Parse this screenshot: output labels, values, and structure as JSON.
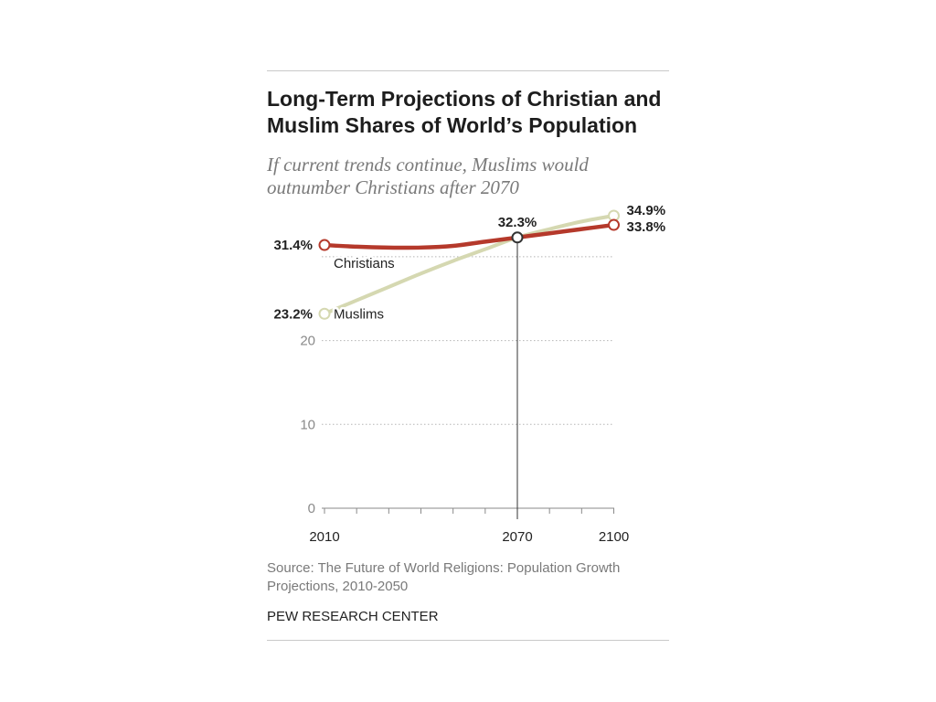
{
  "chart_data": {
    "type": "line",
    "title": "Long-Term Projections of Christian and Muslim Shares of World’s Population",
    "subtitle": "If current trends continue, Muslims would outnumber Christians after 2070",
    "xlabel": "",
    "ylabel": "",
    "x": [
      2010,
      2020,
      2030,
      2040,
      2050,
      2060,
      2070,
      2080,
      2090,
      2100
    ],
    "xticks": [
      2010,
      2070,
      2100
    ],
    "xtick_labels": [
      "2010",
      "2070",
      "2100"
    ],
    "yticks": [
      0,
      10,
      20
    ],
    "ytick_labels": [
      "0",
      "10",
      "20"
    ],
    "ylim": [
      0,
      35
    ],
    "grid": true,
    "gridlines": [
      10,
      20,
      30
    ],
    "series": [
      {
        "name": "Christians",
        "color": "#b5392b",
        "values": [
          31.4,
          31.2,
          31.1,
          31.1,
          31.3,
          31.8,
          32.3,
          32.8,
          33.3,
          33.8
        ],
        "label_position": "below-right"
      },
      {
        "name": "Muslims",
        "color": "#d5d8b1",
        "values": [
          23.2,
          24.8,
          26.4,
          28.0,
          29.5,
          30.9,
          32.3,
          33.3,
          34.2,
          34.9
        ],
        "label_position": "right"
      }
    ],
    "data_labels": [
      {
        "series": "Christians",
        "x": 2010,
        "value": 31.4,
        "text": "31.4%",
        "position": "left"
      },
      {
        "series": "Muslims",
        "x": 2010,
        "value": 23.2,
        "text": "23.2%",
        "position": "left"
      },
      {
        "series": "both",
        "x": 2070,
        "value": 32.3,
        "text": "32.3%",
        "position": "above"
      },
      {
        "series": "Muslims",
        "x": 2100,
        "value": 34.9,
        "text": "34.9%",
        "position": "right-upper"
      },
      {
        "series": "Christians",
        "x": 2100,
        "value": 33.8,
        "text": "33.8%",
        "position": "right-lower"
      }
    ]
  },
  "footer": {
    "source": "Source: The Future of World Religions: Population Growth Projections, 2010-2050",
    "credit": "PEW RESEARCH CENTER"
  }
}
